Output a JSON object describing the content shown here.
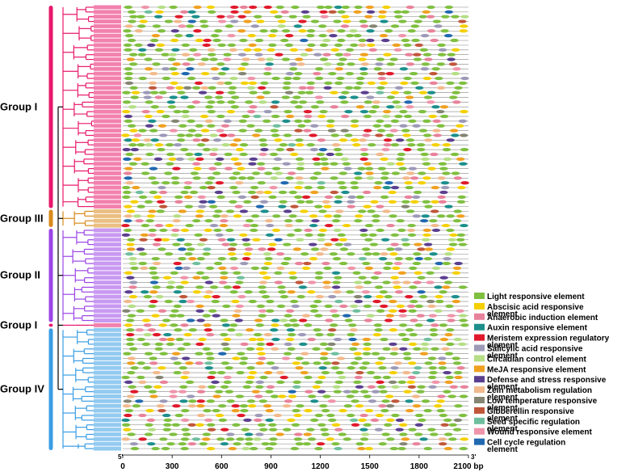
{
  "groups": [
    {
      "label": "Group I",
      "color": "#e8196b",
      "rows": 43
    },
    {
      "label": "Group III",
      "color": "#d98a1c",
      "rows": 4
    },
    {
      "label": "Group II",
      "color": "#9b45e6",
      "rows": 20
    },
    {
      "label": "Group I",
      "color": "#e8196b",
      "rows": 1
    },
    {
      "label": "Group IV",
      "color": "#3a9ee4",
      "rows": 26
    }
  ],
  "axis": {
    "ticks": [
      "0",
      "300",
      "600",
      "900",
      "1200",
      "1500",
      "1800",
      "2100 bp"
    ],
    "tick_values": [
      0,
      300,
      600,
      900,
      1200,
      1500,
      1800,
      2100
    ],
    "max_bp": 2100,
    "five_prime": "5'",
    "three_prime": "3'"
  },
  "legend": [
    {
      "label": "Light responsive element",
      "color": "#7fbf3f",
      "icon": "ellipse-swatch"
    },
    {
      "label": "Abscisic acid responsive element",
      "color": "#f5d000",
      "icon": "ellipse-swatch"
    },
    {
      "label": "Anaerobic induction element",
      "color": "#e8829a",
      "icon": "ellipse-swatch"
    },
    {
      "label": "Auxin responsive element",
      "color": "#1c8f8c",
      "icon": "ellipse-swatch"
    },
    {
      "label": "Meristem expression regulatory element",
      "color": "#e0192b",
      "icon": "ellipse-swatch"
    },
    {
      "label": "Salicylic acid responsive element",
      "color": "#9d9ab8",
      "icon": "ellipse-swatch"
    },
    {
      "label": "Circadian control element",
      "color": "#b5de86",
      "icon": "ellipse-swatch"
    },
    {
      "label": "MeJA responsive element",
      "color": "#f0a020",
      "icon": "ellipse-swatch"
    },
    {
      "label": "Defense and stress responsive element",
      "color": "#5b3f8f",
      "icon": "ellipse-swatch"
    },
    {
      "label": "Zein metabolism regulation element",
      "color": "#f2b98c",
      "icon": "ellipse-swatch"
    },
    {
      "label": "Low temperature responsive element",
      "color": "#858574",
      "icon": "ellipse-swatch"
    },
    {
      "label": "Gibberellin responsive element",
      "color": "#c0573a",
      "icon": "ellipse-swatch"
    },
    {
      "label": "Seed specific regulation element",
      "color": "#6fbf9e",
      "icon": "ellipse-swatch"
    },
    {
      "label": "Wound responsive element",
      "color": "#ef94aa",
      "icon": "ellipse-swatch"
    },
    {
      "label": "Cell cycle regulation element",
      "color": "#2068b0",
      "icon": "ellipse-swatch"
    }
  ]
}
